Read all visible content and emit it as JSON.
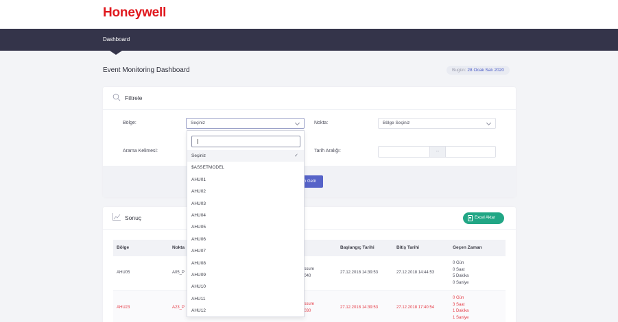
{
  "brand": {
    "logo": "Honeywell",
    "color": "#e0191e"
  },
  "nav": {
    "active_item": "Dashboard"
  },
  "page": {
    "title": "Event Monitoring Dashboard",
    "date_label": "Bugün:",
    "date_value": "28 Ocak Salı 2020"
  },
  "filter": {
    "title": "Filtrele",
    "icon": "search-icon",
    "region_label": "Bölge:",
    "region_value": "Seçiniz",
    "point_label": "Nokta:",
    "point_value": "Bölge Seçiniz",
    "keyword_label": "Arama Kelimesi:",
    "date_range_label": "Tarih Aralığı:",
    "date_range_separator": "...",
    "submit_label": "n Getir"
  },
  "dropdown": {
    "search_value": "",
    "options": [
      "Seçiniz",
      "$ASSETMODEL",
      "AHU01",
      "AHU02",
      "AHU03",
      "AHU04",
      "AHU05",
      "AHU06",
      "AHU07",
      "AHU08",
      "AHU09",
      "AHU10",
      "AHU11",
      "AHU12"
    ],
    "selected_index": 0
  },
  "result": {
    "title": "Sonuç",
    "icon": "chart-icon",
    "export_label": "Excel Aktar",
    "columns": [
      "Bölge",
      "Nokta",
      "a",
      "Başlangıç Tarihi",
      "Bitiş Tarihi",
      "Geçen Zaman"
    ],
    "rows": [
      {
        "region": "AHU05",
        "point": "A05_P",
        "event_1": "essure",
        "event_2": "2040",
        "start": "27.12.2018 14:39:53",
        "end": "27.12.2018 14:44:53",
        "elapsed": [
          "0 Gün",
          "0 Saat",
          "5 Dakika",
          "0 Saniye"
        ],
        "alert": false
      },
      {
        "region": "AHU23",
        "point": "A23_P",
        "event_1": "essure",
        "event_2": "2030",
        "start": "27.12.2018 14:39:53",
        "end": "27.12.2018 17:40:54",
        "elapsed": [
          "0 Gün",
          "3 Saat",
          "1 Dakika",
          "1 Saniye"
        ],
        "alert": true
      }
    ]
  },
  "colors": {
    "navbar": "#34344a",
    "accent": "#5663c8",
    "excel": "#21a685",
    "alert_text": "#e53a45"
  }
}
